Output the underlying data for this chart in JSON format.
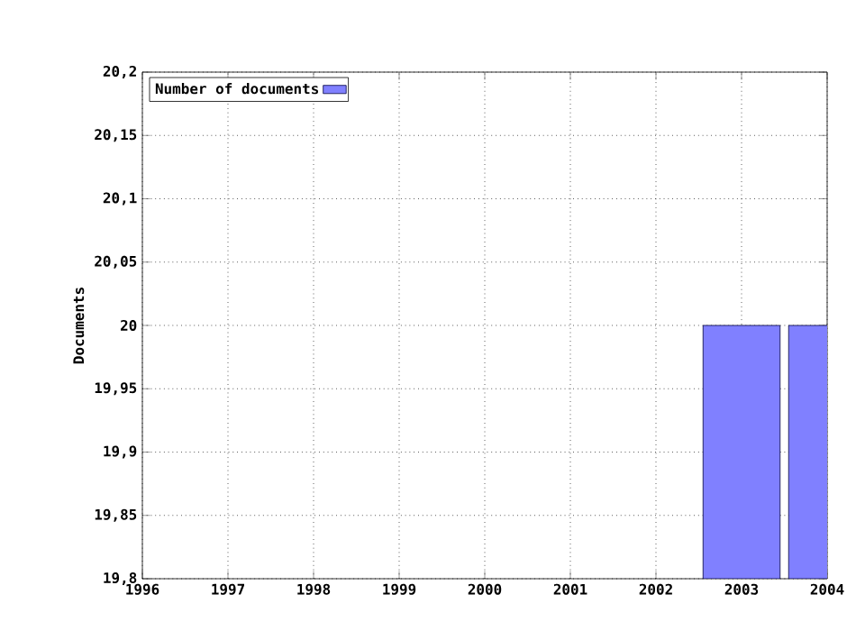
{
  "chart_data": {
    "type": "bar",
    "ylabel": "Documents",
    "x": [
      2003,
      2004
    ],
    "series": [
      {
        "name": "Number of documents",
        "color": "#8080ff",
        "values": [
          20,
          20
        ]
      }
    ],
    "xlim": [
      1996,
      2004
    ],
    "xticks": [
      1996,
      1997,
      1998,
      1999,
      2000,
      2001,
      2002,
      2003,
      2004
    ],
    "ylim": [
      19.8,
      20.2
    ],
    "yticks": [
      {
        "value": 19.8,
        "label": "19,8"
      },
      {
        "value": 19.85,
        "label": "19,85"
      },
      {
        "value": 19.9,
        "label": "19,9"
      },
      {
        "value": 19.95,
        "label": "19,95"
      },
      20,
      {
        "value": 20.05,
        "label": "20,05"
      },
      {
        "value": 20.1,
        "label": "20,1"
      },
      {
        "value": 20.15,
        "label": "20,15"
      },
      {
        "value": 20.2,
        "label": "20,2"
      }
    ],
    "grid": true,
    "legend": "top left"
  }
}
